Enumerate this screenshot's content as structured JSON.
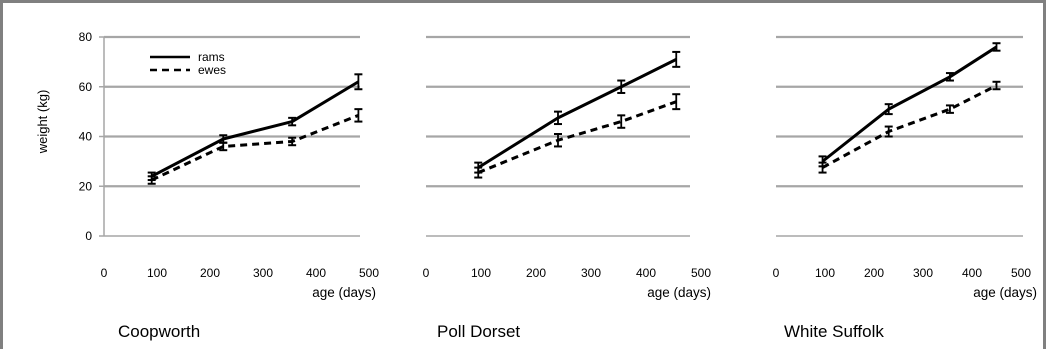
{
  "chart_data": [
    {
      "type": "line",
      "title": "Coopworth",
      "xlabel": "age (days)",
      "ylabel": "weight (kg)",
      "xlim": [
        0,
        500
      ],
      "ylim": [
        0,
        80
      ],
      "xticks": [
        "0",
        "100",
        "200",
        "300",
        "400",
        "500"
      ],
      "yticks": [
        "0",
        "20",
        "40",
        "60",
        "80"
      ],
      "grid": true,
      "show_yaxis": true,
      "legend": {
        "position": "top-left",
        "entries": [
          "rams",
          "ewes"
        ]
      },
      "series": [
        {
          "name": "rams",
          "style": "solid",
          "x": [
            90,
            225,
            355,
            480
          ],
          "y": [
            24,
            39,
            46,
            62
          ],
          "err": [
            1.5,
            1.5,
            1.5,
            3
          ]
        },
        {
          "name": "ewes",
          "style": "dashed",
          "x": [
            90,
            225,
            355,
            480
          ],
          "y": [
            22.5,
            36,
            38,
            48.5
          ],
          "err": [
            1.5,
            1.5,
            1.5,
            2.5
          ]
        }
      ]
    },
    {
      "type": "line",
      "title": "Poll Dorset",
      "xlabel": "age (days)",
      "ylabel": "",
      "xlim": [
        0,
        500
      ],
      "ylim": [
        0,
        80
      ],
      "xticks": [
        "0",
        "100",
        "200",
        "300",
        "400",
        "500"
      ],
      "yticks": [],
      "grid": true,
      "show_yaxis": false,
      "series": [
        {
          "name": "rams",
          "style": "solid",
          "x": [
            95,
            240,
            355,
            455
          ],
          "y": [
            27.5,
            47.5,
            60,
            71
          ],
          "err": [
            2,
            2.5,
            2.5,
            3
          ]
        },
        {
          "name": "ewes",
          "style": "dashed",
          "x": [
            95,
            240,
            355,
            455
          ],
          "y": [
            25.5,
            38.5,
            46,
            54
          ],
          "err": [
            2,
            2.5,
            2.5,
            3
          ]
        }
      ]
    },
    {
      "type": "line",
      "title": "White Suffolk",
      "xlabel": "age (days)",
      "ylabel": "",
      "xlim": [
        0,
        500
      ],
      "ylim": [
        0,
        80
      ],
      "xticks": [
        "0",
        "100",
        "200",
        "300",
        "400",
        "500"
      ],
      "yticks": [],
      "grid": true,
      "show_yaxis": false,
      "series": [
        {
          "name": "rams",
          "style": "solid",
          "x": [
            95,
            230,
            355,
            450
          ],
          "y": [
            30,
            51,
            64,
            76
          ],
          "err": [
            2,
            2,
            1.5,
            1.5
          ]
        },
        {
          "name": "ewes",
          "style": "dashed",
          "x": [
            95,
            230,
            355,
            450
          ],
          "y": [
            27.5,
            42,
            51,
            60.5
          ],
          "err": [
            2,
            2,
            1.5,
            1.5
          ]
        }
      ]
    }
  ],
  "colors": {
    "grid": "#a6a6a6",
    "line": "#000000",
    "frame": "#808080",
    "background": "#ffffff"
  }
}
